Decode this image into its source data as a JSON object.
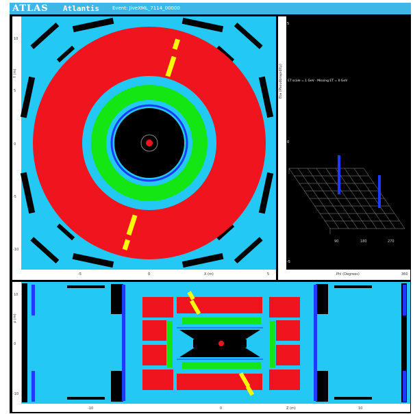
{
  "titlebar": {
    "logo": "ATLAS",
    "app_name": "Atlantis",
    "event_info": "Event: JiveXML_7114_00000"
  },
  "xy_view": {
    "y_axis_label": "Y (m)",
    "x_axis_label": "X (m)",
    "y_ticks": [
      "10",
      "5",
      "0",
      "-5",
      "-10"
    ],
    "x_ticks": [
      "-5",
      "0",
      "5"
    ]
  },
  "lego_view": {
    "y_axis_label": "Eta (Pseudorapidity)",
    "legend_text": "ET scale = 1 GeV · Missing ET = 0 GeV",
    "x_axis_label": "Phi (Degrees)",
    "y_ticks": [
      "5",
      "2.5",
      "0",
      "-2.5",
      "-5"
    ],
    "x_ticks": [
      "0",
      "90",
      "180",
      "270",
      "360"
    ]
  },
  "rz_view": {
    "y_axis_label": "ρ (m)",
    "x_axis_label": "Z (m)",
    "y_ticks": [
      "10",
      "0",
      "-10"
    ],
    "x_ticks": [
      "-10",
      "0",
      "10"
    ]
  },
  "colors": {
    "frame_blue": "#3db8e6",
    "background": "#000000",
    "muon_cyan": "#23c8f5",
    "calorimeter_red": "#f0141e",
    "em_green": "#14e614",
    "track_yellow": "#ffff00",
    "solenoid_blue": "#1a3cff"
  }
}
